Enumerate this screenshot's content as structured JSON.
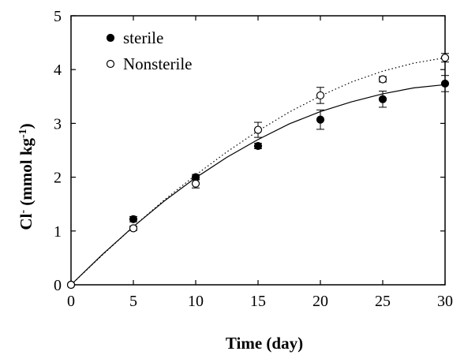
{
  "chart_data": {
    "type": "scatter",
    "title": "",
    "xlabel": "Time (day)",
    "ylabel": {
      "base": "Cl",
      "base_sup": "-",
      "rest": " (mmol kg",
      "rest_sup": "-1",
      "close": ")"
    },
    "xlim": [
      0,
      30
    ],
    "ylim": [
      0,
      5
    ],
    "xticks": [
      "0",
      "5",
      "10",
      "15",
      "20",
      "25",
      "30"
    ],
    "yticks": [
      "0",
      "1",
      "2",
      "3",
      "4",
      "5"
    ],
    "grid": false,
    "legend_position": "top-left",
    "series": [
      {
        "name": "sterile",
        "marker": "filled-circle",
        "line_style": "solid",
        "color": "#000000",
        "x": [
          0,
          5,
          10,
          15,
          20,
          25,
          30
        ],
        "y": [
          0,
          1.22,
          2.0,
          2.58,
          3.07,
          3.45,
          3.74
        ],
        "err": [
          0,
          0.05,
          0.05,
          0.05,
          0.18,
          0.15,
          0.15
        ],
        "fit": [
          [
            0,
            0
          ],
          [
            2.5,
            0.56
          ],
          [
            5,
            1.08
          ],
          [
            7.5,
            1.56
          ],
          [
            10,
            1.99
          ],
          [
            12.5,
            2.37
          ],
          [
            15,
            2.7
          ],
          [
            17.5,
            2.99
          ],
          [
            20,
            3.22
          ],
          [
            22.5,
            3.4
          ],
          [
            25,
            3.55
          ],
          [
            27.5,
            3.66
          ],
          [
            30,
            3.72
          ]
        ]
      },
      {
        "name": "Nonsterile",
        "marker": "open-circle",
        "line_style": "dotted",
        "color": "#000000",
        "x": [
          0,
          5,
          10,
          15,
          20,
          25,
          30
        ],
        "y": [
          0,
          1.05,
          1.88,
          2.88,
          3.52,
          3.82,
          4.22
        ],
        "err": [
          0,
          0.04,
          0.08,
          0.14,
          0.15,
          0.05,
          0.08
        ],
        "fit": [
          [
            0,
            0
          ],
          [
            2.5,
            0.55
          ],
          [
            5,
            1.08
          ],
          [
            7.5,
            1.58
          ],
          [
            10,
            2.04
          ],
          [
            12.5,
            2.47
          ],
          [
            15,
            2.86
          ],
          [
            17.5,
            3.21
          ],
          [
            20,
            3.51
          ],
          [
            22.5,
            3.77
          ],
          [
            25,
            3.97
          ],
          [
            27.5,
            4.12
          ],
          [
            30,
            4.22
          ]
        ]
      }
    ]
  }
}
